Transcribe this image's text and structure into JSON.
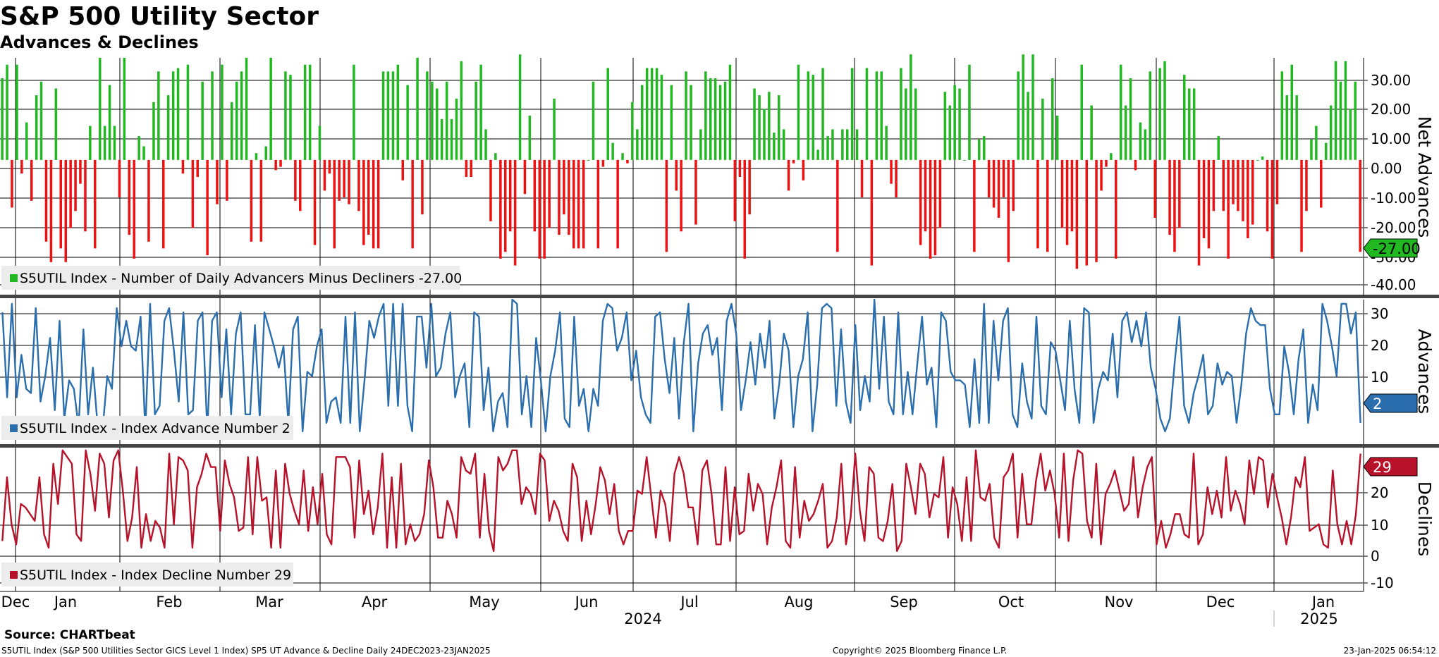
{
  "title": "S&P 500 Utility Sector",
  "subtitle": "Advances & Declines",
  "source": "Source: CHARTbeat",
  "footer": {
    "description": "S5UTIL Index (S&P 500 Utilities Sector GICS Level 1 Index) SP5 UT Advance & Decline  Daily 24DEC2023-23JAN2025",
    "copyright": "Copyright© 2025 Bloomberg Finance L.P.",
    "timestamp": "23-Jan-2025 06:54:12"
  },
  "x_axis": {
    "months": [
      "Dec",
      "Jan",
      "Feb",
      "Mar",
      "Apr",
      "May",
      "Jun",
      "Jul",
      "Aug",
      "Sep",
      "Oct",
      "Nov",
      "Dec",
      "Jan"
    ],
    "years": [
      "2024",
      "2025"
    ]
  },
  "colors": {
    "positive": "#22b822",
    "negative": "#ee1111",
    "advances": "#2a6ead",
    "declines": "#b8122a",
    "grid": "#000000",
    "separator": "#444444"
  },
  "chart_data": [
    {
      "type": "bar",
      "ylabel": "Net Advances",
      "ylim": [
        -40,
        30
      ],
      "yticks": [
        "30.00",
        "20.00",
        "10.00",
        "0.00",
        "-10.00",
        "-20.00",
        "-30.00",
        "-40.00"
      ],
      "legend": "S5UTIL Index - Number of Daily Advancers Minus Decliners -27.00",
      "last_value_label": "-27.00",
      "series": [
        {
          "values": [
            24,
            28,
            -14,
            28,
            -4,
            11,
            -12,
            19,
            23,
            -24,
            -30,
            21,
            -26,
            -30,
            -20,
            -15,
            -7,
            -21,
            10,
            -26,
            30,
            10,
            22,
            10,
            -11,
            30,
            -22,
            -29,
            7,
            4,
            -24,
            17,
            26,
            -26,
            19,
            26,
            27,
            -4,
            28,
            -20,
            -5,
            23,
            -28,
            26,
            -13,
            28,
            -12,
            17,
            23,
            26,
            30,
            -24,
            2,
            -24,
            4,
            30,
            -3,
            -2,
            26,
            25,
            -12,
            -15,
            28,
            28,
            -25,
            10,
            -9,
            -4,
            -26,
            -12,
            -11,
            -13,
            28,
            -15,
            -25,
            -22,
            -26,
            -26,
            26,
            26,
            26,
            28,
            -6,
            22,
            -26,
            30,
            -16,
            26,
            23,
            21,
            12,
            23,
            12,
            18,
            29,
            -5,
            -5,
            23,
            28,
            9,
            -18,
            2,
            -29,
            -27,
            -21,
            -31,
            31,
            -10,
            13,
            -21,
            -29,
            -29,
            -20,
            18,
            -22,
            -16,
            -22,
            -26,
            -26,
            -26,
            0,
            23,
            -26,
            -2,
            27,
            5,
            -26,
            2,
            -1,
            17,
            9,
            22,
            27,
            27,
            27,
            25,
            -27,
            22,
            -9,
            -21,
            26,
            22,
            -19,
            9,
            26,
            24,
            24,
            22,
            23,
            28,
            -18,
            -5,
            -29,
            -16,
            21,
            19,
            15,
            20,
            8,
            19,
            9,
            -9,
            -1,
            28,
            -6,
            26,
            25,
            3,
            27,
            7,
            9,
            -27,
            9,
            9,
            27,
            9,
            -11,
            27,
            -31,
            26,
            26,
            10,
            -7,
            -11,
            27,
            21,
            31,
            21,
            -25,
            -21,
            -29,
            -28,
            -20,
            20,
            16,
            22,
            21,
            0,
            28,
            -27,
            6,
            7,
            -11,
            -14,
            -17,
            -11,
            -30,
            -15,
            26,
            31,
            20,
            31,
            -26,
            18,
            -27,
            24,
            13,
            -20,
            -25,
            -21,
            -32,
            28,
            -31,
            16,
            -30,
            -9,
            -2,
            2,
            -29,
            28,
            16,
            24,
            -3,
            11,
            9,
            26,
            -17,
            27,
            29,
            -22,
            -27,
            -20,
            25,
            21,
            21,
            -31,
            -23,
            -26,
            -15,
            7,
            -15,
            -29,
            -13,
            -15,
            -18,
            -23,
            -19,
            0,
            1,
            -21,
            -29,
            -13,
            26,
            19,
            28,
            19,
            -27,
            -15,
            6,
            10,
            -14,
            5,
            16,
            29,
            23,
            29,
            15,
            23,
            -27
          ]
        }
      ]
    },
    {
      "type": "line",
      "ylabel": "Advances",
      "ylim": [
        -3,
        31
      ],
      "yticks": [
        "30",
        "20",
        "10"
      ],
      "legend": "S5UTIL Index - Index Advance Number 2",
      "last_value_label": "2",
      "series": [
        {
          "values": [
            28,
            8,
            30,
            8,
            18,
            10,
            9,
            29,
            7,
            13,
            22,
            5,
            26,
            3,
            12,
            10,
            1,
            24,
            4,
            15,
            1,
            0,
            13,
            10,
            29,
            20,
            26,
            20,
            19,
            27,
            0,
            30,
            4,
            6,
            26,
            29,
            19,
            7,
            28,
            4,
            5,
            26,
            28,
            0,
            26,
            28,
            8,
            24,
            4,
            23,
            28,
            4,
            4,
            25,
            3,
            28,
            24,
            20,
            15,
            20,
            2,
            24,
            27,
            0,
            14,
            13,
            20,
            24,
            2,
            7,
            8,
            2,
            27,
            2,
            28,
            0,
            12,
            26,
            22,
            27,
            30,
            6,
            30,
            6,
            30,
            6,
            0,
            27,
            27,
            15,
            30,
            13,
            15,
            23,
            28,
            8,
            13,
            16,
            1,
            28,
            27,
            5,
            15,
            0,
            7,
            9,
            1,
            31,
            30,
            4,
            13,
            1,
            22,
            12,
            0,
            13,
            19,
            28,
            3,
            1,
            27,
            6,
            10,
            0,
            10,
            6,
            26,
            30,
            29,
            19,
            22,
            28,
            12,
            19,
            8,
            4,
            2,
            27,
            28,
            17,
            9,
            22,
            3,
            21,
            30,
            0,
            16,
            23,
            25,
            18,
            22,
            5,
            26,
            30,
            23,
            5,
            12,
            21,
            11,
            23,
            15,
            26,
            3,
            11,
            23,
            19,
            1,
            13,
            17,
            28,
            0,
            11,
            29,
            30,
            29,
            6,
            24,
            7,
            2,
            25,
            5,
            13,
            7,
            31,
            10,
            27,
            7,
            4,
            28,
            4,
            14,
            4,
            16,
            27,
            11,
            15,
            1,
            28,
            26,
            14,
            12,
            12,
            11,
            1,
            17,
            2,
            30,
            2,
            26,
            12,
            26,
            29,
            4,
            1,
            16,
            7,
            3,
            27,
            6,
            4,
            21,
            19,
            12,
            5,
            26,
            10,
            2,
            29,
            28,
            2,
            10,
            14,
            12,
            23,
            8,
            26,
            28,
            21,
            26,
            20,
            28,
            15,
            10,
            3,
            0,
            3,
            16,
            27,
            6,
            2,
            9,
            13,
            18,
            4,
            6,
            16,
            11,
            14,
            13,
            2,
            11,
            23,
            29,
            26,
            25,
            25,
            10,
            4,
            4,
            20,
            14,
            4,
            17,
            24,
            2,
            11,
            5,
            30,
            26,
            20,
            13,
            30,
            30,
            23,
            28,
            2
          ]
        }
      ]
    },
    {
      "type": "line",
      "ylabel": "Declines",
      "ylim": [
        -12,
        31
      ],
      "yticks": [
        "20",
        "10",
        "0",
        "-10"
      ],
      "legend": "S5UTIL Index - Index Decline Number 29",
      "last_value_label": "29",
      "series": [
        {
          "values": [
            3,
            22,
            8,
            2,
            14,
            13,
            11,
            9,
            22,
            5,
            1,
            26,
            14,
            30,
            28,
            26,
            5,
            3,
            30,
            23,
            12,
            29,
            26,
            10,
            27,
            30,
            18,
            3,
            10,
            25,
            1,
            11,
            3,
            9,
            7,
            1,
            29,
            8,
            28,
            27,
            24,
            1,
            19,
            23,
            29,
            25,
            25,
            6,
            27,
            20,
            16,
            6,
            7,
            28,
            5,
            28,
            15,
            16,
            1,
            24,
            1,
            26,
            17,
            12,
            8,
            24,
            6,
            19,
            8,
            23,
            5,
            2,
            28,
            28,
            28,
            25,
            4,
            27,
            11,
            18,
            5,
            13,
            29,
            1,
            22,
            1,
            26,
            2,
            8,
            3,
            5,
            11,
            27,
            19,
            4,
            4,
            15,
            11,
            4,
            28,
            24,
            23,
            29,
            4,
            23,
            6,
            0,
            28,
            24,
            26,
            30,
            30,
            14,
            19,
            17,
            11,
            29,
            27,
            9,
            15,
            12,
            6,
            3,
            26,
            22,
            3,
            15,
            5,
            14,
            25,
            21,
            11,
            20,
            6,
            2,
            6,
            6,
            18,
            17,
            28,
            16,
            4,
            18,
            14,
            3,
            23,
            28,
            23,
            13,
            13,
            2,
            24,
            27,
            17,
            2,
            2,
            25,
            3,
            19,
            5,
            6,
            23,
            12,
            20,
            17,
            2,
            13,
            19,
            27,
            3,
            1,
            25,
            4,
            15,
            9,
            11,
            15,
            20,
            1,
            3,
            10,
            26,
            2,
            10,
            29,
            12,
            3,
            25,
            23,
            4,
            3,
            9,
            20,
            0,
            3,
            26,
            19,
            11,
            26,
            23,
            10,
            17,
            16,
            28,
            4,
            19,
            14,
            3,
            22,
            3,
            30,
            16,
            15,
            20,
            4,
            1,
            22,
            24,
            29,
            4,
            23,
            8,
            8,
            21,
            29,
            18,
            24,
            17,
            4,
            29,
            3,
            21,
            30,
            29,
            9,
            4,
            26,
            2,
            17,
            20,
            24,
            18,
            12,
            14,
            28,
            10,
            19,
            25,
            28,
            2,
            9,
            1,
            5,
            11,
            11,
            5,
            4,
            29,
            2,
            5,
            19,
            11,
            18,
            10,
            28,
            12,
            18,
            14,
            8,
            27,
            17,
            28,
            27,
            13,
            23,
            16,
            10,
            2,
            10,
            22,
            19,
            28,
            6,
            7,
            8,
            2,
            1,
            24,
            8,
            2,
            9,
            2,
            11,
            29
          ]
        }
      ]
    }
  ]
}
